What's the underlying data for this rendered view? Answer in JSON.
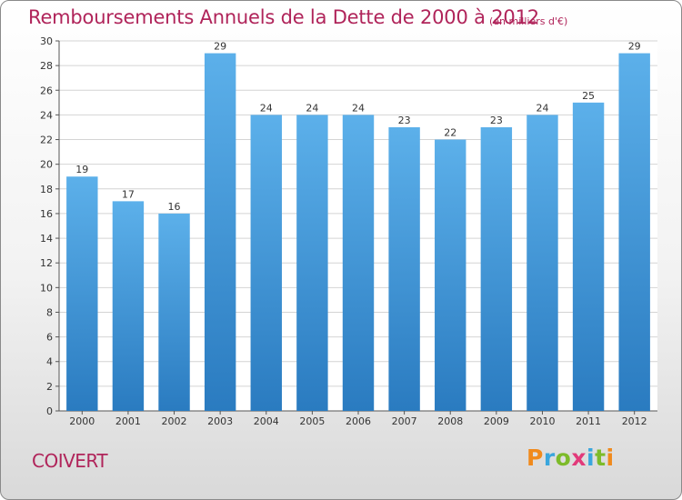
{
  "chart_data": {
    "type": "bar",
    "title": "Remboursements Annuels de la Dette de 2000 à 2012",
    "subtitle": "(en milliers d'€)",
    "categories": [
      "2000",
      "2001",
      "2002",
      "2003",
      "2004",
      "2005",
      "2006",
      "2007",
      "2008",
      "2009",
      "2010",
      "2011",
      "2012"
    ],
    "values": [
      19,
      17,
      16,
      29,
      24,
      24,
      24,
      23,
      22,
      23,
      24,
      25,
      29
    ],
    "ylim": [
      0,
      30
    ],
    "yticks": [
      0,
      2,
      4,
      6,
      8,
      10,
      12,
      14,
      16,
      18,
      20,
      22,
      24,
      26,
      28,
      30
    ],
    "grid": true,
    "bar_color": "#4a9fe0",
    "title_color": "#b0245a"
  },
  "place_name": "COIVERT",
  "logo": {
    "letters": [
      "P",
      "r",
      "o",
      "x",
      "i",
      "t",
      "i"
    ],
    "colors": [
      "#f08a1c",
      "#3aa6dd",
      "#7dbb2a",
      "#e23a7a",
      "#3aa6dd",
      "#7dbb2a",
      "#f08a1c"
    ]
  }
}
